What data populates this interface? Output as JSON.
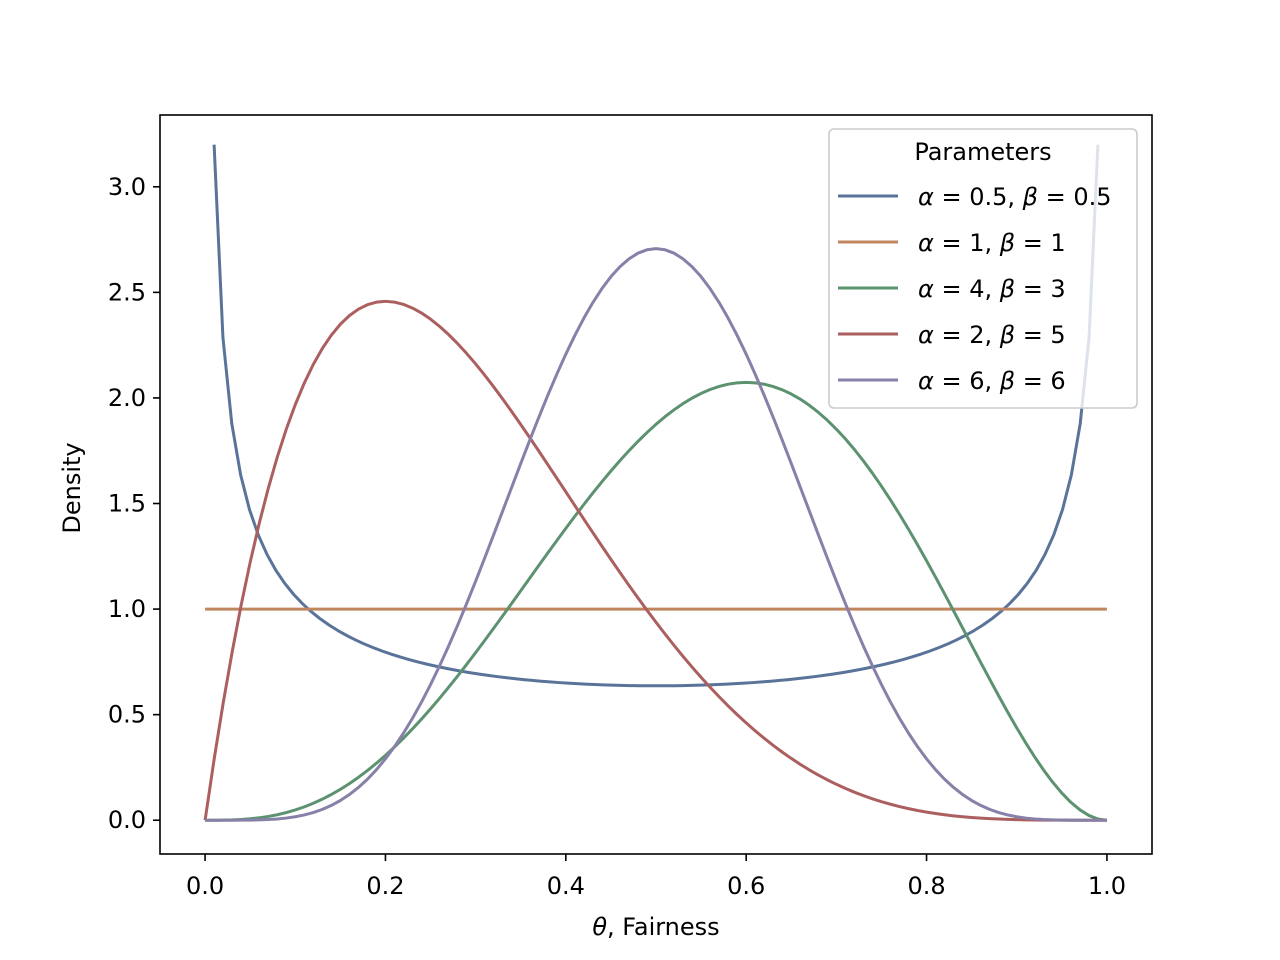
{
  "chart_data": {
    "type": "line",
    "title": "",
    "xlabel": {
      "symbol": "θ",
      "text": ", Fairness"
    },
    "ylabel": "Density",
    "xlim": [
      -0.05,
      1.05
    ],
    "ylim": [
      -0.16,
      3.34
    ],
    "xticks": [
      "0.0",
      "0.2",
      "0.4",
      "0.6",
      "0.8",
      "1.0"
    ],
    "yticks": [
      "0.0",
      "0.5",
      "1.0",
      "1.5",
      "2.0",
      "2.5",
      "3.0"
    ],
    "grid": false,
    "legend": {
      "title": "Parameters",
      "placement": "top-right"
    },
    "series": [
      {
        "name": "α = 0.5, β = 0.5",
        "legend_parts": [
          {
            "t": "α",
            "i": true
          },
          {
            "t": " = 0.5, ",
            "i": false
          },
          {
            "t": "β",
            "i": true
          },
          {
            "t": " = 0.5",
            "i": false
          }
        ],
        "alpha": 0.5,
        "beta": 0.5,
        "color": "#5a7399",
        "x_range": [
          0.01,
          0.99
        ]
      },
      {
        "name": "α = 1, β = 1",
        "legend_parts": [
          {
            "t": "α",
            "i": true
          },
          {
            "t": " = 1, ",
            "i": false
          },
          {
            "t": "β",
            "i": true
          },
          {
            "t": " = 1",
            "i": false
          }
        ],
        "alpha": 1,
        "beta": 1,
        "color": "#c08660",
        "x_range": [
          0.0,
          1.0
        ]
      },
      {
        "name": "α = 4, β = 3",
        "legend_parts": [
          {
            "t": "α",
            "i": true
          },
          {
            "t": " = 4, ",
            "i": false
          },
          {
            "t": "β",
            "i": true
          },
          {
            "t": " = 3",
            "i": false
          }
        ],
        "alpha": 4,
        "beta": 3,
        "color": "#5d9270",
        "x_range": [
          0.0,
          1.0
        ]
      },
      {
        "name": "α = 2, β = 5",
        "legend_parts": [
          {
            "t": "α",
            "i": true
          },
          {
            "t": " = 2, ",
            "i": false
          },
          {
            "t": "β",
            "i": true
          },
          {
            "t": " = 5",
            "i": false
          }
        ],
        "alpha": 2,
        "beta": 5,
        "color": "#ab5f5f",
        "x_range": [
          0.0,
          1.0
        ]
      },
      {
        "name": "α = 6, β = 6",
        "legend_parts": [
          {
            "t": "α",
            "i": true
          },
          {
            "t": " = 6, ",
            "i": false
          },
          {
            "t": "β",
            "i": true
          },
          {
            "t": " = 6",
            "i": false
          }
        ],
        "alpha": 6,
        "beta": 6,
        "color": "#8780a8",
        "x_range": [
          0.0,
          1.0
        ]
      }
    ]
  }
}
